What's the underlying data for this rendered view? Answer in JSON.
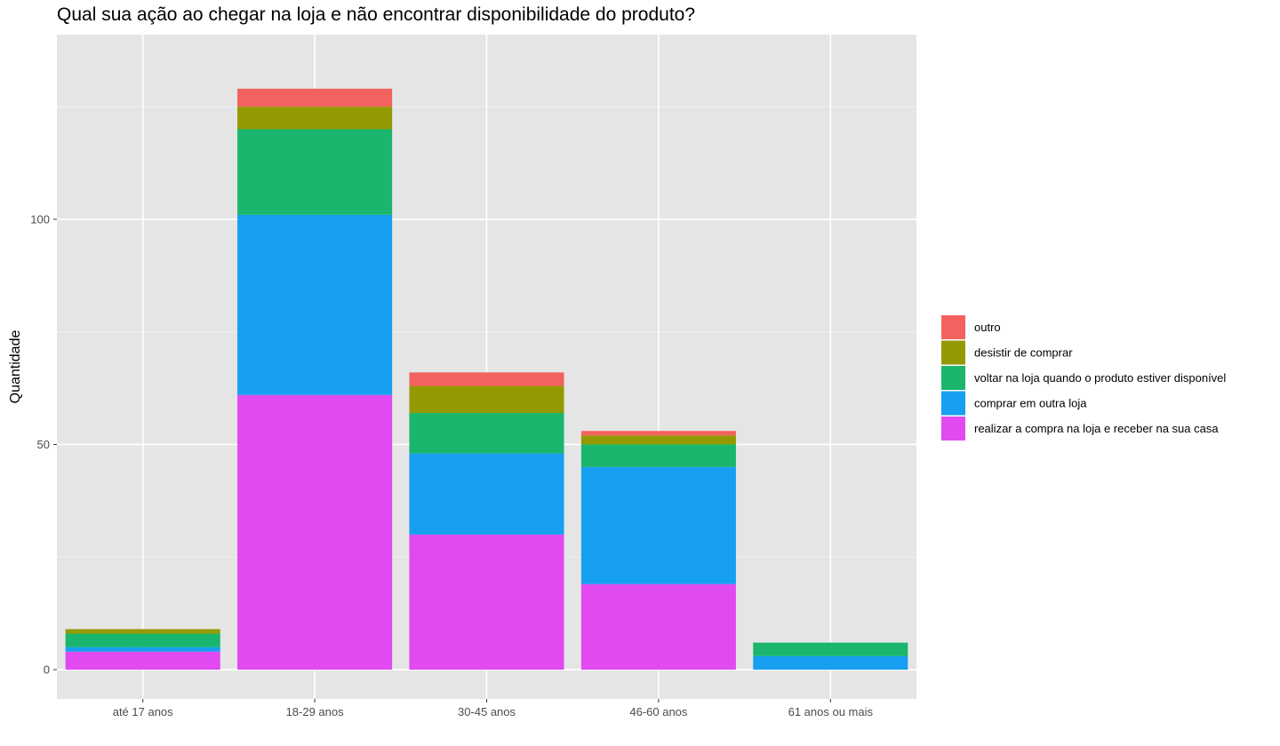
{
  "chart_data": {
    "type": "bar",
    "stacked": true,
    "title": "Qual sua ação ao chegar na loja e não encontrar disponibilidade do produto?",
    "xlabel": "",
    "ylabel": "Quantidade",
    "categories": [
      "até 17 anos",
      "18-29 anos",
      "30-45 anos",
      "46-60 anos",
      "61 anos ou mais"
    ],
    "yticks": [
      0,
      50,
      100
    ],
    "ylim": [
      -6.5,
      141
    ],
    "grid": true,
    "legend_position": "right",
    "series": [
      {
        "name": "realizar a compra na loja e receber na sua casa",
        "color": "#E04AF0",
        "values": [
          4,
          61,
          30,
          19,
          0
        ]
      },
      {
        "name": "comprar em outra loja",
        "color": "#179FF2",
        "values": [
          1,
          40,
          18,
          26,
          3
        ]
      },
      {
        "name": "voltar na loja quando o produto estiver disponível",
        "color": "#1AB66E",
        "values": [
          3,
          19,
          9,
          5,
          3
        ]
      },
      {
        "name": "desistir de comprar",
        "color": "#939A01",
        "values": [
          1,
          5,
          6,
          2,
          0
        ]
      },
      {
        "name": "outro",
        "color": "#F3625E",
        "values": [
          0,
          4,
          3,
          1,
          0
        ]
      }
    ],
    "legend_order": [
      "outro",
      "desistir de comprar",
      "voltar na loja quando o produto estiver disponível",
      "comprar em outra loja",
      "realizar a compra na loja e receber na sua casa"
    ]
  },
  "colors": {
    "panel_background": "#E5E5E5",
    "grid_major": "#FFFFFF",
    "grid_minor": "#F2F2F2",
    "tick_text": "#4D4D4D"
  }
}
